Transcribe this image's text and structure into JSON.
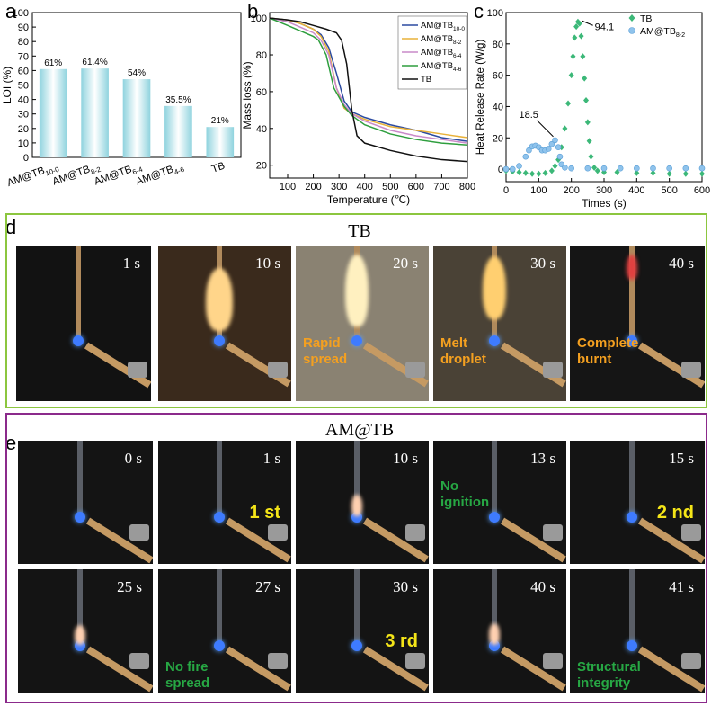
{
  "panels": {
    "a": "a",
    "b": "b",
    "c": "c",
    "d": "d",
    "e": "e"
  },
  "chart_data": [
    {
      "id": "a",
      "type": "bar",
      "ylabel": "LOI (%)",
      "ylim": [
        0,
        100
      ],
      "yticks": [
        0,
        10,
        20,
        30,
        40,
        50,
        60,
        70,
        80,
        90,
        100
      ],
      "categories": [
        {
          "base": "AM@TB",
          "sub": "10-0"
        },
        {
          "base": "AM@TB",
          "sub": "8-2"
        },
        {
          "base": "AM@TB",
          "sub": "6-4"
        },
        {
          "base": "AM@TB",
          "sub": "4-6"
        },
        {
          "base": "TB",
          "sub": ""
        }
      ],
      "values": [
        61,
        61.4,
        54,
        35.5,
        21
      ],
      "value_labels": [
        "61%",
        "61.4%",
        "54%",
        "35.5%",
        "21%"
      ],
      "color": "#8fd3de"
    },
    {
      "id": "b",
      "type": "line",
      "xlabel": "Temperature (℃)",
      "ylabel": "Mass loss (%)",
      "xlim": [
        30,
        800
      ],
      "ylim": [
        13,
        103
      ],
      "xticks": [
        100,
        200,
        300,
        400,
        500,
        600,
        700,
        800
      ],
      "yticks": [
        20,
        40,
        60,
        80,
        100
      ],
      "legend": "top-right",
      "series": [
        {
          "name": "AM@TB",
          "sub": "10-0",
          "color": "#2b4aa0",
          "x": [
            30,
            100,
            150,
            200,
            230,
            260,
            290,
            320,
            350,
            400,
            500,
            600,
            700,
            800
          ],
          "y": [
            100,
            99,
            97,
            94,
            91,
            84,
            70,
            55,
            49,
            46,
            42,
            39,
            35,
            33
          ]
        },
        {
          "name": "AM@TB",
          "sub": "8-2",
          "color": "#e9b23a",
          "x": [
            30,
            100,
            150,
            200,
            230,
            260,
            290,
            320,
            350,
            400,
            500,
            600,
            700,
            800
          ],
          "y": [
            100,
            99,
            97,
            94,
            90,
            82,
            62,
            51,
            48,
            45,
            41,
            39,
            37,
            35
          ]
        },
        {
          "name": "AM@TB",
          "sub": "6-4",
          "color": "#c98ac9",
          "x": [
            30,
            100,
            150,
            200,
            230,
            260,
            290,
            320,
            350,
            400,
            500,
            600,
            700,
            800
          ],
          "y": [
            100,
            98,
            95,
            92,
            88,
            80,
            62,
            53,
            48,
            44,
            39,
            36,
            34,
            32
          ]
        },
        {
          "name": "AM@TB",
          "sub": "4-6",
          "color": "#2e9e3e",
          "x": [
            30,
            100,
            150,
            200,
            220,
            250,
            280,
            320,
            350,
            400,
            500,
            600,
            700,
            800
          ],
          "y": [
            100,
            96,
            93,
            90,
            88,
            80,
            62,
            52,
            47,
            42,
            37,
            34,
            32,
            31
          ]
        },
        {
          "name": "TB",
          "sub": "",
          "color": "#111111",
          "x": [
            30,
            100,
            150,
            200,
            250,
            290,
            310,
            330,
            350,
            370,
            400,
            500,
            600,
            700,
            800
          ],
          "y": [
            100,
            99,
            98,
            96,
            94,
            92,
            88,
            75,
            50,
            36,
            32,
            28,
            25,
            23,
            22
          ]
        }
      ]
    },
    {
      "id": "c",
      "type": "scatter",
      "xlabel": "Times (s)",
      "ylabel": "Heat Release Rate (W/g)",
      "xlim": [
        0,
        600
      ],
      "ylim": [
        -8,
        100
      ],
      "xticks": [
        0,
        100,
        200,
        300,
        400,
        500,
        600
      ],
      "yticks": [
        0,
        20,
        40,
        60,
        80,
        100
      ],
      "legend": "top-right",
      "annotations": [
        {
          "text": "94.1",
          "x": 222,
          "y": 94.1
        },
        {
          "text": "18.5",
          "x": 150,
          "y": 18.5
        }
      ],
      "series": [
        {
          "name": "TB",
          "sub": "",
          "color": "#3cb878",
          "marker": "diamond",
          "x": [
            0,
            20,
            40,
            60,
            80,
            100,
            120,
            140,
            150,
            160,
            170,
            180,
            190,
            200,
            205,
            210,
            215,
            220,
            225,
            230,
            235,
            240,
            245,
            250,
            255,
            260,
            270,
            280,
            300,
            340,
            400,
            450,
            500,
            550,
            600
          ],
          "y": [
            -1,
            -1.5,
            -2,
            -2.5,
            -3,
            -3,
            -2.5,
            -1,
            2,
            6,
            14,
            26,
            42,
            60,
            72,
            84,
            91,
            94.1,
            93,
            85,
            72,
            58,
            44,
            30,
            18,
            8,
            1,
            -1,
            -2,
            -2,
            -2.5,
            -2.5,
            -3,
            -3,
            -3
          ]
        },
        {
          "name": "AM@TB",
          "sub": "8-2",
          "color": "#8fc3ec",
          "marker": "circle",
          "x": [
            0,
            20,
            40,
            60,
            70,
            80,
            90,
            100,
            110,
            120,
            130,
            140,
            150,
            160,
            165,
            170,
            180,
            200,
            250,
            300,
            350,
            400,
            450,
            500,
            550,
            600
          ],
          "y": [
            0,
            0,
            2,
            8,
            12,
            14.5,
            15,
            14,
            12,
            12,
            13,
            16,
            18.5,
            14,
            8,
            3,
            1,
            0.5,
            0.5,
            0.5,
            0.5,
            0.5,
            0.5,
            0.5,
            0.5,
            0.5
          ]
        }
      ]
    }
  ],
  "panel_d": {
    "title": "TB",
    "frames": [
      {
        "time": "1 s",
        "note": ""
      },
      {
        "time": "10 s",
        "note": ""
      },
      {
        "time": "20 s",
        "note": "Rapid\nspread"
      },
      {
        "time": "30 s",
        "note": "Melt\ndroplet"
      },
      {
        "time": "40 s",
        "note": "Complete\nburnt"
      }
    ]
  },
  "panel_e": {
    "title": "AM@TB",
    "frames": [
      {
        "time": "0 s",
        "note": "",
        "big": ""
      },
      {
        "time": "1 s",
        "note": "",
        "big": "1 st"
      },
      {
        "time": "10 s",
        "note": "",
        "big": ""
      },
      {
        "time": "13 s",
        "note": "No\nignition",
        "big": ""
      },
      {
        "time": "15 s",
        "note": "",
        "big": "2 nd"
      },
      {
        "time": "25 s",
        "note": "",
        "big": ""
      },
      {
        "time": "27 s",
        "note": "No fire\nspread",
        "big": ""
      },
      {
        "time": "30 s",
        "note": "",
        "big": "3 rd"
      },
      {
        "time": "40 s",
        "note": "",
        "big": ""
      },
      {
        "time": "41 s",
        "note": "Structural\nintegrity",
        "big": ""
      }
    ]
  },
  "colors": {
    "frame_d": "#8cc63f",
    "frame_e": "#8b2a8b",
    "note_orange": "#f4a020",
    "note_green": "#27a844",
    "big_yellow": "#f4e518"
  }
}
